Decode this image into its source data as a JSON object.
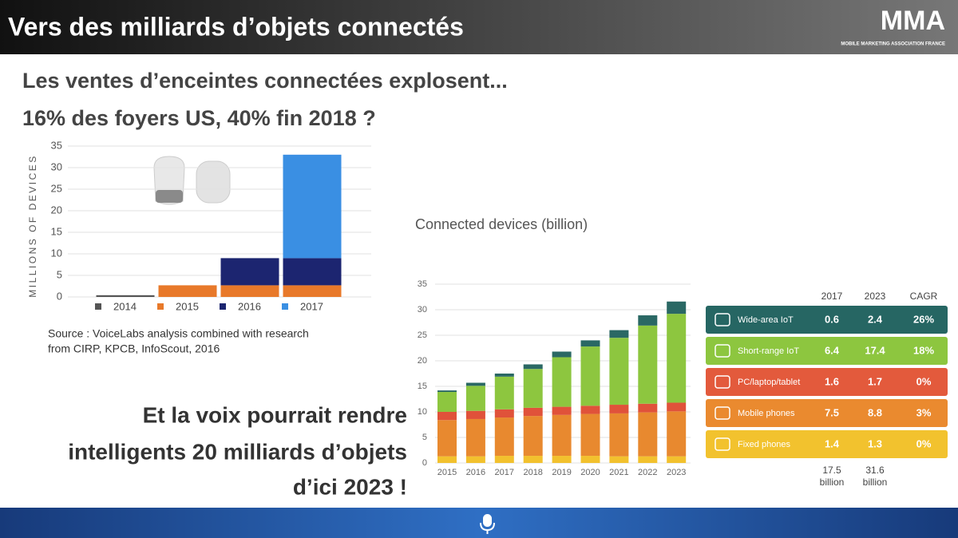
{
  "header": {
    "title": "Vers des milliards d’objets connectés",
    "logo": "MMA",
    "logo_sub": "MOBILE MARKETING ASSOCIATION FRANCE"
  },
  "subtitle": [
    "Les ventes d’enceintes connectées explosent...",
    "16% des foyers US, 40% fin 2018 ?"
  ],
  "source": [
    "Source : VoiceLabs analysis combined with research",
    "from CIRP, KPCB, InfoScout, 2016"
  ],
  "statement": [
    "Et la voix pourrait rendre",
    "intelligents 20 milliards d’objets",
    "d’ici 2023 !"
  ],
  "chart_data": [
    {
      "type": "stacked_bar",
      "ylabel": "MILLIONS OF DEVICES",
      "categories": [
        null,
        null,
        null,
        null
      ],
      "series": [
        {
          "name": "2014",
          "color": "#555555",
          "values": [
            0.4,
            null,
            null,
            null
          ]
        },
        {
          "name": "2015",
          "color": "#e8792a",
          "values": [
            null,
            2.7,
            2.7,
            2.7
          ]
        },
        {
          "name": "2016",
          "color": "#1c2570",
          "values": [
            null,
            null,
            6.3,
            6.3
          ]
        },
        {
          "name": "2017",
          "color": "#3a8fe3",
          "values": [
            null,
            null,
            null,
            24
          ]
        }
      ],
      "ylim": [
        0,
        35
      ],
      "yticks": [
        0,
        5,
        10,
        15,
        20,
        25,
        30,
        35
      ],
      "grid": true,
      "legend": "bottom"
    },
    {
      "type": "stacked_bar",
      "title": "Connected devices (billion)",
      "categories": [
        "2015",
        "2016",
        "2017",
        "2018",
        "2019",
        "2020",
        "2021",
        "2022",
        "2023"
      ],
      "series": [
        {
          "name": "Fixed phones",
          "color": "#f2c12e",
          "values": [
            1.3,
            1.3,
            1.4,
            1.4,
            1.4,
            1.4,
            1.3,
            1.3,
            1.3
          ]
        },
        {
          "name": "Mobile phones",
          "color": "#e8892f",
          "values": [
            7.1,
            7.3,
            7.5,
            7.8,
            8.0,
            8.2,
            8.4,
            8.6,
            8.8
          ]
        },
        {
          "name": "PC/laptop/tablet",
          "color": "#e0523a",
          "values": [
            1.6,
            1.6,
            1.6,
            1.6,
            1.6,
            1.6,
            1.7,
            1.7,
            1.7
          ]
        },
        {
          "name": "Short-range IoT",
          "color": "#8dc63f",
          "values": [
            3.9,
            4.9,
            6.4,
            7.6,
            9.7,
            11.6,
            13.1,
            15.3,
            17.4
          ]
        },
        {
          "name": "Wide-area IoT",
          "color": "#2a6864",
          "values": [
            0.3,
            0.6,
            0.6,
            0.9,
            1.1,
            1.2,
            1.5,
            2.0,
            2.4
          ]
        }
      ],
      "ylim": [
        0,
        35
      ],
      "yticks": [
        0,
        5,
        10,
        15,
        20,
        25,
        30,
        35
      ],
      "grid": true
    }
  ],
  "table": {
    "header": [
      "2017",
      "2023",
      "CAGR"
    ],
    "rows": [
      [
        "Wide-area IoT",
        "0.6",
        "2.4",
        "26%"
      ],
      [
        "Short-range IoT",
        "6.4",
        "17.4",
        "18%"
      ],
      [
        "PC/laptop/tablet",
        "1.6",
        "1.7",
        "0%"
      ],
      [
        "Mobile phones",
        "7.5",
        "8.8",
        "3%"
      ],
      [
        "Fixed phones",
        "1.4",
        "1.3",
        "0%"
      ]
    ],
    "row_colors": [
      "#266663",
      "#8dc63f",
      "#e35a3c",
      "#ea8a2f",
      "#f2c22e"
    ],
    "totals": [
      [
        "17.5",
        "billion"
      ],
      [
        "31.6",
        "billion"
      ]
    ]
  }
}
